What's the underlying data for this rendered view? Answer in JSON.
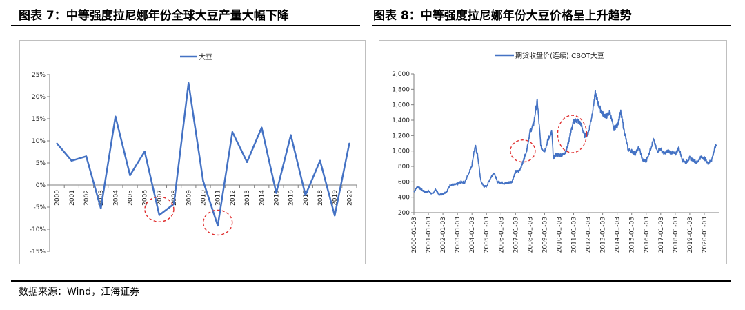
{
  "figure7": {
    "title": "图表 7：中等强度拉尼娜年份全球大豆产量大幅下降"
  },
  "figure8": {
    "title": "图表 8：中等强度拉尼娜年份大豆价格呈上升趋势"
  },
  "source": "数据来源：Wind，江海证券",
  "colors": {
    "line": "#4472c4",
    "circle": "#e03030",
    "axis": "#7f7f7f"
  },
  "chart_data": [
    {
      "type": "line",
      "series": [
        {
          "name": "大豆",
          "values": [
            0.094,
            0.055,
            0.065,
            -0.053,
            0.155,
            0.022,
            0.076,
            -0.068,
            -0.043,
            0.231,
            0.009,
            -0.092,
            0.12,
            0.052,
            0.13,
            -0.018,
            0.113,
            -0.023,
            0.055,
            -0.069,
            0.094
          ]
        }
      ],
      "categories": [
        "2000",
        "2001",
        "2002",
        "2003",
        "2004",
        "2005",
        "2006",
        "2007",
        "2008",
        "2009",
        "2010",
        "2011",
        "2012",
        "2013",
        "2014",
        "2015",
        "2016",
        "2017",
        "2018",
        "2019",
        "2020"
      ],
      "y_ticks": [
        "25%",
        "20%",
        "15%",
        "10%",
        "5%",
        "0%",
        "-5%",
        "-10%",
        "-15%"
      ],
      "ylim": [
        -0.15,
        0.25
      ],
      "legend": "top",
      "grid": false,
      "annotations": [
        {
          "type": "dashed-circle",
          "x": "2007",
          "y": -0.055
        },
        {
          "type": "dashed-circle",
          "x": "2011",
          "y": -0.085
        }
      ]
    },
    {
      "type": "line",
      "series": [
        {
          "name": "期货收盘价(连续):CBOT大豆",
          "points": [
            [
              2000.0,
              470
            ],
            [
              2000.25,
              540
            ],
            [
              2000.5,
              500
            ],
            [
              2000.75,
              470
            ],
            [
              2001.0,
              480
            ],
            [
              2001.25,
              440
            ],
            [
              2001.5,
              500
            ],
            [
              2001.75,
              430
            ],
            [
              2002.0,
              445
            ],
            [
              2002.25,
              470
            ],
            [
              2002.5,
              560
            ],
            [
              2002.75,
              560
            ],
            [
              2003.0,
              570
            ],
            [
              2003.25,
              600
            ],
            [
              2003.5,
              590
            ],
            [
              2003.75,
              700
            ],
            [
              2004.0,
              820
            ],
            [
              2004.15,
              1000
            ],
            [
              2004.25,
              1050
            ],
            [
              2004.4,
              930
            ],
            [
              2004.6,
              620
            ],
            [
              2004.8,
              540
            ],
            [
              2005.0,
              540
            ],
            [
              2005.25,
              640
            ],
            [
              2005.5,
              720
            ],
            [
              2005.75,
              600
            ],
            [
              2006.0,
              590
            ],
            [
              2006.25,
              580
            ],
            [
              2006.5,
              590
            ],
            [
              2006.75,
              600
            ],
            [
              2007.0,
              730
            ],
            [
              2007.25,
              740
            ],
            [
              2007.5,
              850
            ],
            [
              2007.75,
              1000
            ],
            [
              2008.0,
              1250
            ],
            [
              2008.25,
              1350
            ],
            [
              2008.4,
              1550
            ],
            [
              2008.5,
              1650
            ],
            [
              2008.6,
              1400
            ],
            [
              2008.75,
              1050
            ],
            [
              2009.0,
              1000
            ],
            [
              2009.25,
              1150
            ],
            [
              2009.5,
              1250
            ],
            [
              2009.6,
              900
            ],
            [
              2009.75,
              950
            ],
            [
              2010.0,
              950
            ],
            [
              2010.25,
              950
            ],
            [
              2010.5,
              1000
            ],
            [
              2010.75,
              1200
            ],
            [
              2011.0,
              1380
            ],
            [
              2011.25,
              1400
            ],
            [
              2011.5,
              1350
            ],
            [
              2011.75,
              1200
            ],
            [
              2012.0,
              1220
            ],
            [
              2012.25,
              1450
            ],
            [
              2012.5,
              1750
            ],
            [
              2012.75,
              1580
            ],
            [
              2013.0,
              1480
            ],
            [
              2013.25,
              1450
            ],
            [
              2013.5,
              1500
            ],
            [
              2013.75,
              1290
            ],
            [
              2014.0,
              1330
            ],
            [
              2014.25,
              1500
            ],
            [
              2014.5,
              1250
            ],
            [
              2014.75,
              1020
            ],
            [
              2015.0,
              1000
            ],
            [
              2015.25,
              960
            ],
            [
              2015.5,
              1050
            ],
            [
              2015.75,
              880
            ],
            [
              2016.0,
              870
            ],
            [
              2016.25,
              1000
            ],
            [
              2016.5,
              1150
            ],
            [
              2016.75,
              1000
            ],
            [
              2017.0,
              1030
            ],
            [
              2017.25,
              960
            ],
            [
              2017.5,
              1000
            ],
            [
              2017.75,
              980
            ],
            [
              2018.0,
              960
            ],
            [
              2018.25,
              1040
            ],
            [
              2018.5,
              880
            ],
            [
              2018.75,
              850
            ],
            [
              2019.0,
              910
            ],
            [
              2019.25,
              880
            ],
            [
              2019.5,
              850
            ],
            [
              2019.75,
              920
            ],
            [
              2020.0,
              910
            ],
            [
              2020.25,
              840
            ],
            [
              2020.5,
              880
            ],
            [
              2020.75,
              1050
            ],
            [
              2020.85,
              1080
            ]
          ]
        }
      ],
      "x_ticks": [
        "2000-01-03",
        "2001-01-03",
        "2002-01-03",
        "2003-01-03",
        "2004-01-03",
        "2005-01-03",
        "2006-01-03",
        "2007-01-03",
        "2008-01-03",
        "2009-01-03",
        "2010-01-03",
        "2011-01-03",
        "2012-01-03",
        "2013-01-03",
        "2014-01-03",
        "2015-01-03",
        "2016-01-03",
        "2017-01-03",
        "2018-01-03",
        "2019-01-03",
        "2020-01-03"
      ],
      "y_ticks": [
        "2,000",
        "1,800",
        "1,600",
        "1,400",
        "1,200",
        "1,000",
        "800",
        "600",
        "400",
        "200"
      ],
      "ylim": [
        200,
        2000
      ],
      "legend": "top",
      "grid": false,
      "annotations": [
        {
          "type": "dashed-circle",
          "x": 2007.5,
          "y": 1000
        },
        {
          "type": "dashed-circle",
          "x": 2010.9,
          "y": 1220
        }
      ]
    }
  ]
}
